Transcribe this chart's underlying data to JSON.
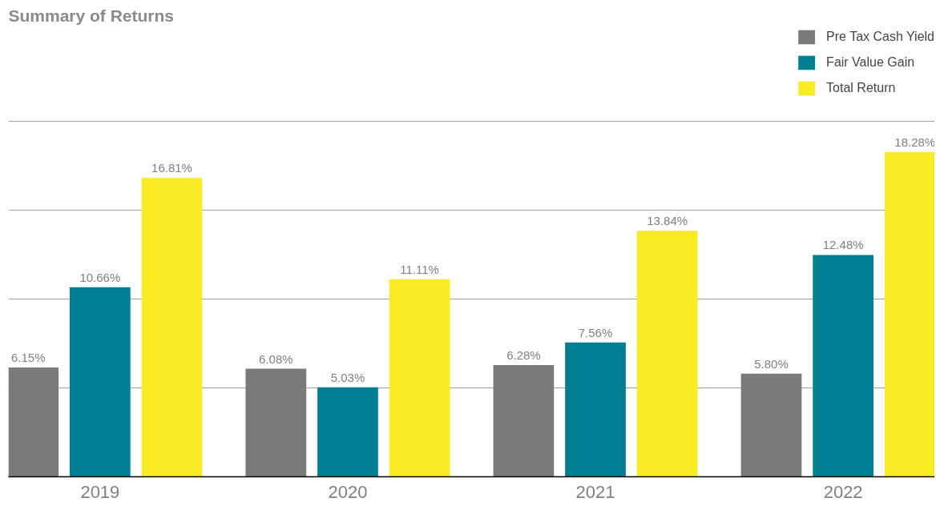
{
  "chart_data": {
    "type": "bar",
    "title": "Summary of Returns",
    "categories": [
      "2019",
      "2020",
      "2021",
      "2022"
    ],
    "series": [
      {
        "name": "Pre Tax Cash Yield",
        "color": "#7a7a7a",
        "values": [
          6.15,
          6.08,
          6.28,
          5.8
        ],
        "value_labels": [
          "6.15%",
          "6.08%",
          "6.28%",
          "5.80%"
        ]
      },
      {
        "name": "Fair Value Gain",
        "color": "#007f93",
        "values": [
          10.66,
          5.03,
          7.56,
          12.48
        ],
        "value_labels": [
          "10.66%",
          "5.03%",
          "7.56%",
          "12.48%"
        ]
      },
      {
        "name": "Total Return",
        "color": "#f9ec24",
        "values": [
          16.81,
          11.11,
          13.84,
          18.28
        ],
        "value_labels": [
          "16.81%",
          "11.11%",
          "13.84%",
          "18.28%"
        ]
      }
    ],
    "ylim": [
      0,
      20
    ],
    "yticks": [
      {
        "value": 0,
        "label": null
      },
      {
        "value": 5,
        "label": null
      },
      {
        "value": 10,
        "label": null
      },
      {
        "value": 15,
        "label": null
      },
      {
        "value": 20,
        "label": null
      }
    ],
    "grid": "y",
    "legend": "top right",
    "tick_labels": "x"
  }
}
